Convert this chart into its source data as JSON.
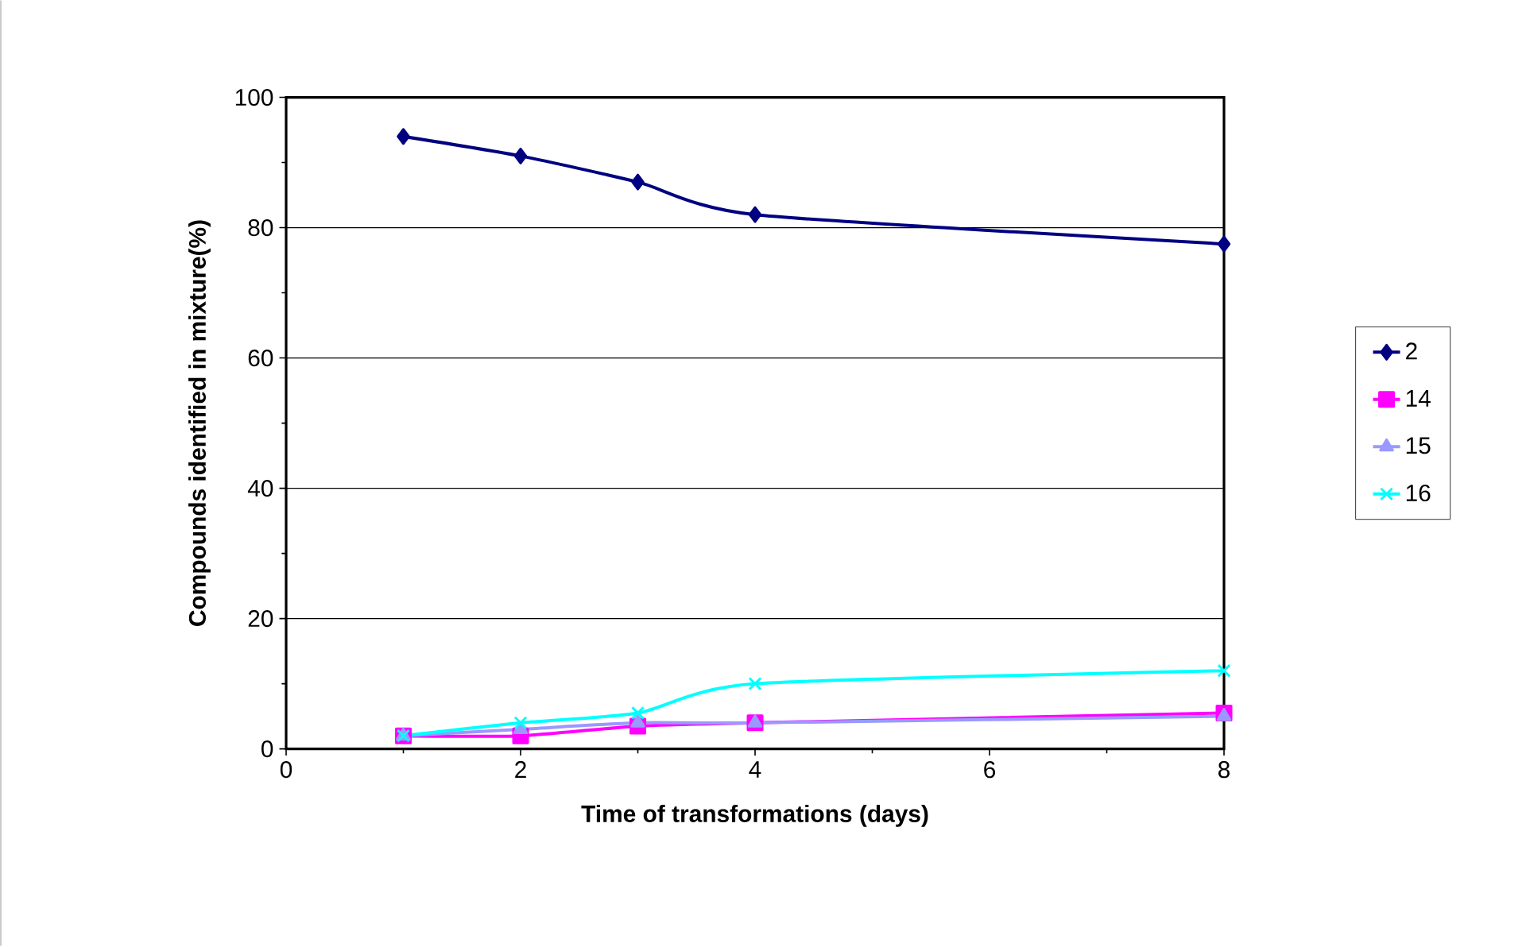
{
  "chart_data": {
    "type": "line",
    "xlabel": "Time of transformations (days)",
    "ylabel": "Compounds identified in mixture(%)",
    "x": [
      1,
      2,
      3,
      4,
      8
    ],
    "series": [
      {
        "name": "2",
        "color": "#000080",
        "marker": "diamond",
        "values": [
          94,
          91,
          87,
          82,
          77.5
        ]
      },
      {
        "name": "14",
        "color": "#ff00ff",
        "marker": "square",
        "values": [
          2,
          2,
          3.5,
          4,
          5.5
        ]
      },
      {
        "name": "15",
        "color": "#9999ff",
        "marker": "triangle",
        "values": [
          2,
          3,
          4,
          4,
          5
        ]
      },
      {
        "name": "16",
        "color": "#00ffff",
        "marker": "cross",
        "values": [
          2,
          4,
          5.5,
          10,
          12
        ]
      }
    ],
    "xlim": [
      0,
      8
    ],
    "xticks": [
      0,
      2,
      4,
      6,
      8
    ],
    "ylim": [
      0,
      100
    ],
    "yticks": [
      0,
      20,
      40,
      60,
      80,
      100
    ],
    "grid": "y",
    "legend": "right",
    "line_style": "solid"
  }
}
